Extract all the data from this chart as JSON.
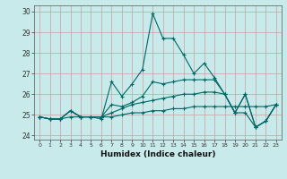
{
  "xlabel": "Humidex (Indice chaleur)",
  "ylabel": "",
  "bg_color": "#c8eaea",
  "grid_color": "#c8a0a0",
  "line_color": "#006666",
  "xlim": [
    -0.5,
    23.5
  ],
  "ylim": [
    23.8,
    30.3
  ],
  "yticks": [
    24,
    25,
    26,
    27,
    28,
    29,
    30
  ],
  "xticks": [
    0,
    1,
    2,
    3,
    4,
    5,
    6,
    7,
    8,
    9,
    10,
    11,
    12,
    13,
    14,
    15,
    16,
    17,
    18,
    19,
    20,
    21,
    22,
    23
  ],
  "lines": [
    [
      24.9,
      24.8,
      24.8,
      25.2,
      24.9,
      24.9,
      24.8,
      26.6,
      25.9,
      26.5,
      27.2,
      29.9,
      28.7,
      28.7,
      27.9,
      27.0,
      27.5,
      26.8,
      26.0,
      25.1,
      26.0,
      24.4,
      24.7,
      25.5
    ],
    [
      24.9,
      24.8,
      24.8,
      25.2,
      24.9,
      24.9,
      24.9,
      25.5,
      25.4,
      25.6,
      25.9,
      26.6,
      26.5,
      26.6,
      26.7,
      26.7,
      26.7,
      26.7,
      26.0,
      25.1,
      26.0,
      24.4,
      24.7,
      25.5
    ],
    [
      24.9,
      24.8,
      24.8,
      25.2,
      24.9,
      24.9,
      24.9,
      25.1,
      25.3,
      25.5,
      25.6,
      25.7,
      25.8,
      25.9,
      26.0,
      26.0,
      26.1,
      26.1,
      26.0,
      25.1,
      25.1,
      24.4,
      24.7,
      25.5
    ],
    [
      24.9,
      24.8,
      24.8,
      24.9,
      24.9,
      24.9,
      24.9,
      24.9,
      25.0,
      25.1,
      25.1,
      25.2,
      25.2,
      25.3,
      25.3,
      25.4,
      25.4,
      25.4,
      25.4,
      25.4,
      25.4,
      25.4,
      25.4,
      25.5
    ]
  ]
}
